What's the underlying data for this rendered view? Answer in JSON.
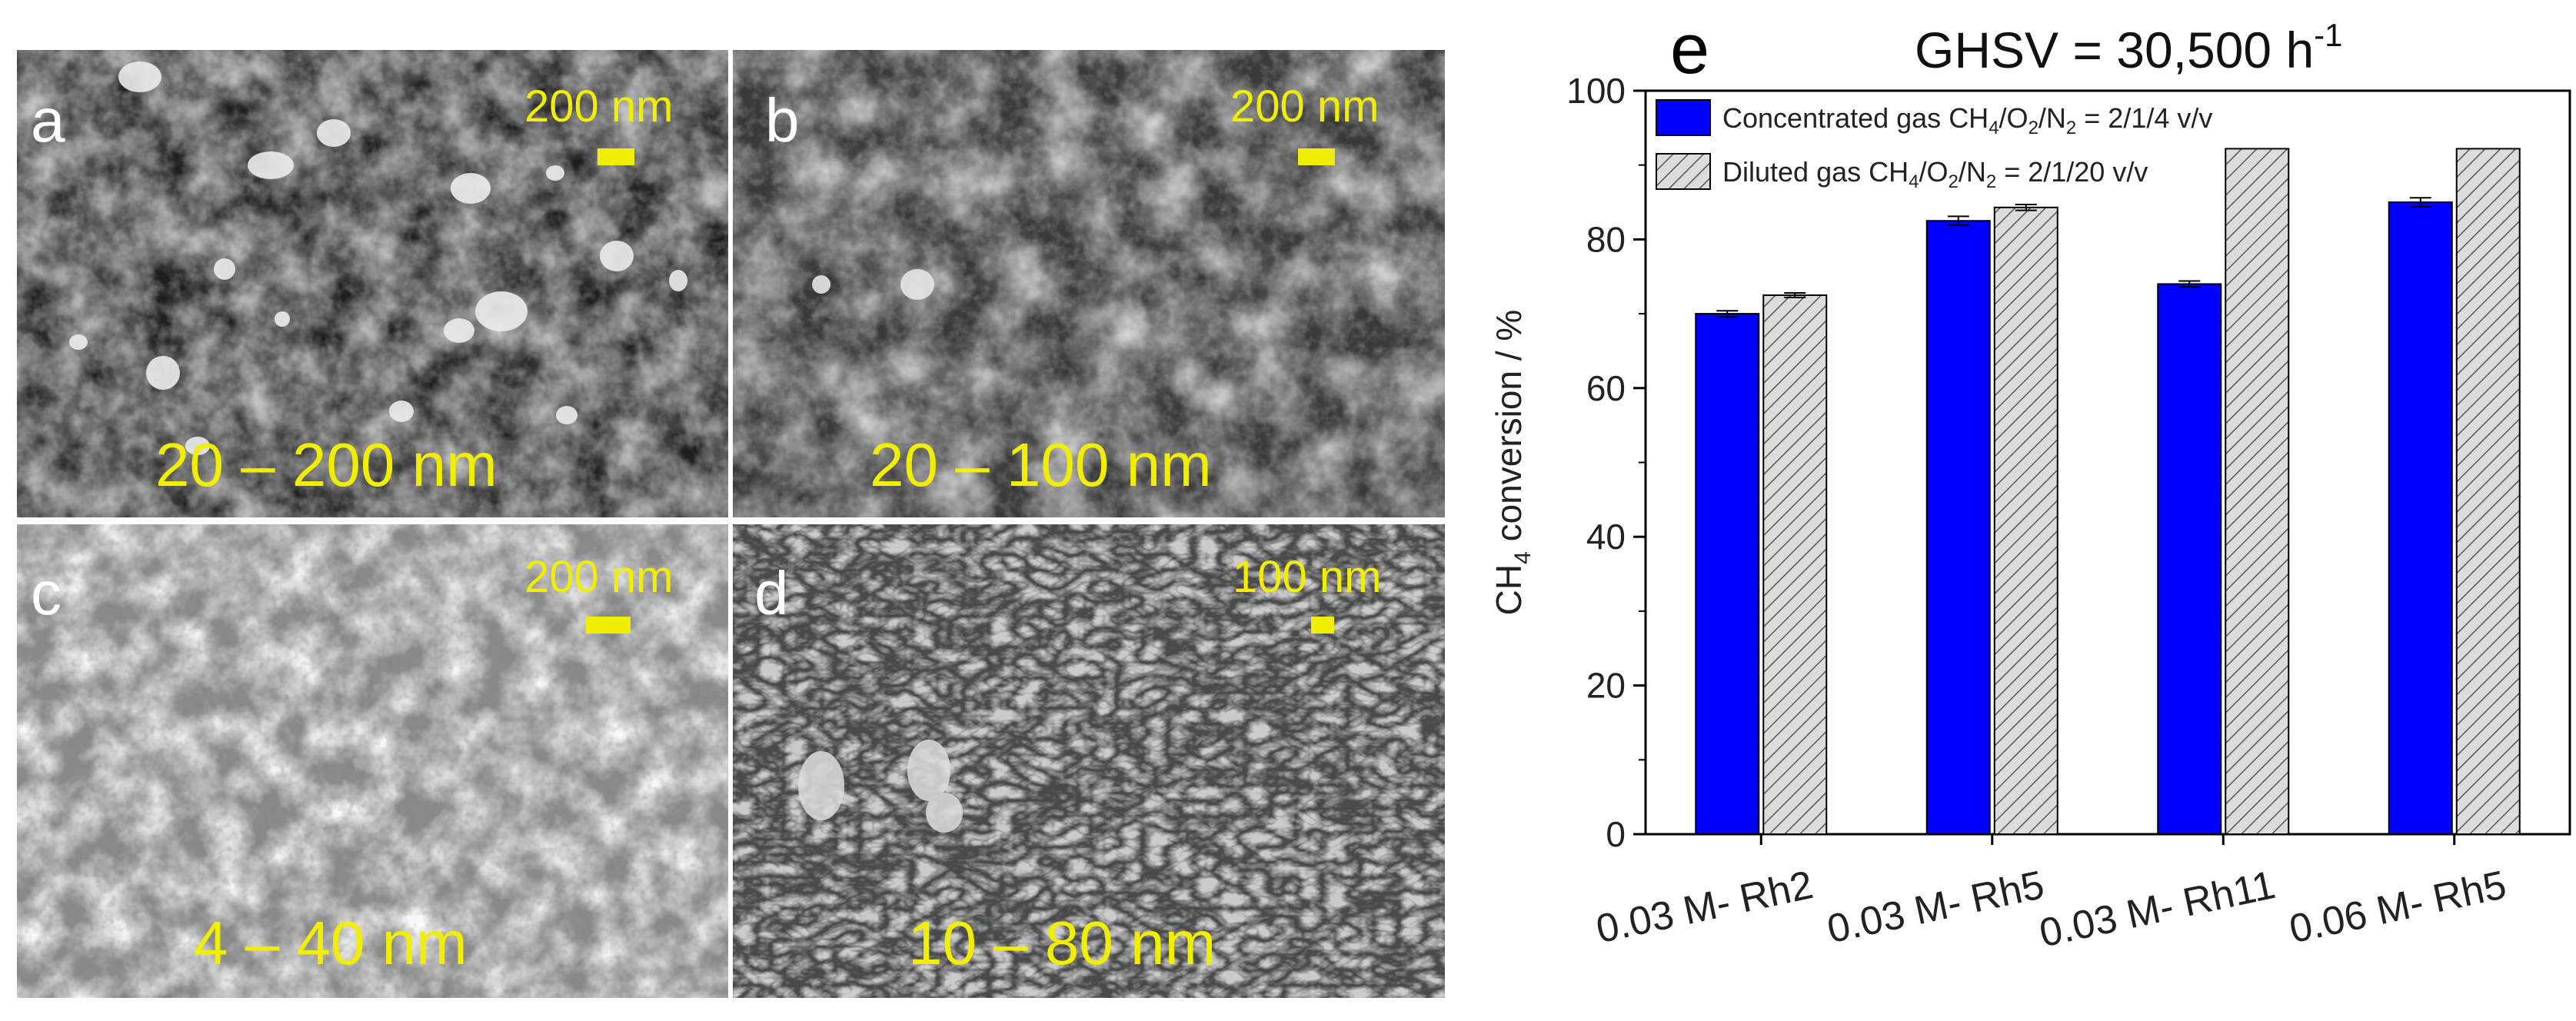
{
  "panels": [
    {
      "letter": "a",
      "scale": "200 nm",
      "range": "20 – 200 nm"
    },
    {
      "letter": "b",
      "scale": "200 nm",
      "range": "20 – 100 nm"
    },
    {
      "letter": "c",
      "scale": "200 nm",
      "range": "4 – 40 nm"
    },
    {
      "letter": "d",
      "scale": "100 nm",
      "range": "10 – 80 nm"
    }
  ],
  "chart_data": {
    "type": "bar",
    "panel_letter": "e",
    "title_main": "GHSV = 30,500 h",
    "title_sup": "-1",
    "ylabel_pre": "CH",
    "ylabel_sub": "4",
    "ylabel_post": " conversion / %",
    "ylim": [
      0,
      100
    ],
    "yticks": [
      0,
      20,
      40,
      60,
      80,
      100
    ],
    "categories": [
      "0.03 M- Rh2",
      "0.03 M- Rh5",
      "0.03 M- Rh11",
      "0.06 M- Rh5"
    ],
    "series": [
      {
        "name": "Concentrated gas CH4/O2/N2 = 2/1/4 v/v",
        "legend_parts": [
          "Concentrated gas CH",
          "4",
          "/O",
          "2",
          "/N",
          "2",
          " = 2/1/4 v/v"
        ],
        "values": [
          70.0,
          82.5,
          74.0,
          85.0
        ],
        "errors": [
          0.4,
          0.6,
          0.4,
          0.6
        ],
        "color": "#0000ff",
        "pattern": "solid"
      },
      {
        "name": "Diluted gas CH4/O2/N2 = 2/1/20 v/v",
        "legend_parts": [
          "Diluted gas CH",
          "4",
          "/O",
          "2",
          "/N",
          "2",
          " = 2/1/20 v/v"
        ],
        "values": [
          72.5,
          84.3,
          92.2,
          92.2
        ],
        "errors": [
          0.3,
          0.4,
          0,
          0
        ],
        "color": "#d8d8d8",
        "pattern": "hatched"
      }
    ],
    "legend_position": "top-left",
    "grid": false
  }
}
